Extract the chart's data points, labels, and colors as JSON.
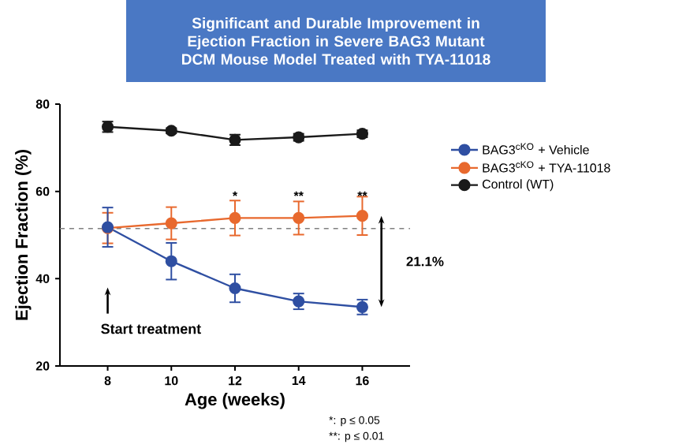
{
  "chart_data": {
    "type": "line",
    "title": "Significant and Durable Improvement in Ejection Fraction in Severe BAG3 Mutant DCM Mouse Model Treated with TYA-11018",
    "xlabel": "Age (weeks)",
    "ylabel": "Ejection Fraction (%)",
    "x": [
      8,
      10,
      12,
      14,
      16
    ],
    "series": [
      {
        "name": "BAG3$^{cKO}$ + Vehicle",
        "color": "#2f4fa2",
        "values": [
          51.8,
          44.0,
          37.8,
          34.8,
          33.5
        ],
        "errors": [
          4.5,
          4.2,
          3.2,
          1.8,
          1.7
        ]
      },
      {
        "name": "BAG3$^{cKO}$ +  TYA-11018",
        "color": "#e8692e",
        "values": [
          51.6,
          52.7,
          53.9,
          53.9,
          54.4
        ],
        "errors": [
          3.5,
          3.7,
          4.0,
          3.8,
          4.4
        ]
      },
      {
        "name": "Control (WT)",
        "color": "#1a1a1a",
        "values": [
          74.8,
          73.9,
          71.8,
          72.4,
          73.2
        ],
        "errors": [
          1.2,
          0.6,
          1.2,
          0.8,
          0.8
        ]
      }
    ],
    "xlim": [
      6.5,
      17.5
    ],
    "xticks": [
      8,
      10,
      12,
      14,
      16
    ],
    "ylim": [
      20,
      80
    ],
    "yticks": [
      20,
      40,
      60,
      80
    ],
    "ref_lines": [
      {
        "axis": "y",
        "value": 51.5,
        "line_style": "dashed",
        "color": "#808080"
      }
    ],
    "annotations": [
      {
        "text": "*",
        "x": 12,
        "y": 59
      },
      {
        "text": "**",
        "x": 14,
        "y": 59
      },
      {
        "text": "**",
        "x": 16,
        "y": 59
      },
      "21.1%",
      "Start treatment",
      "*: p ≤ 0.05",
      "**: p ≤ 0.01"
    ],
    "marker": "circle",
    "line_style": "solid",
    "grid": false,
    "legend": "right"
  }
}
